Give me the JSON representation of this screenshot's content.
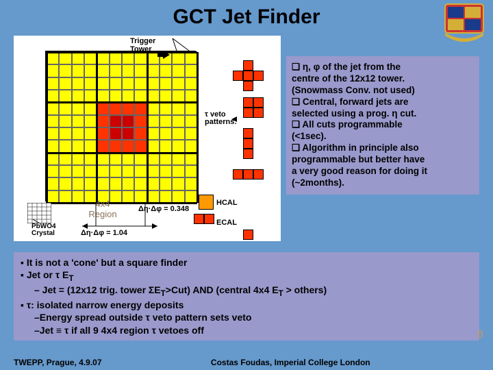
{
  "title": "GCT Jet Finder",
  "right_bullets": {
    "b1": "❑ η, φ of the jet from the",
    "b2": "centre of the 12x12 tower.",
    "b3": "(Snowmass Conv. not used)",
    "b4": "❑ Central, forward jets are",
    "b5": " selected using a prog. η cut.",
    "b6": "❑ All cuts programmable",
    "b7": "(<1sec).",
    "b8": "❑ Algorithm in principle also",
    "b9": "programmable but better have",
    "b10": "a very good reason for doing it",
    "b11": "(~2months)."
  },
  "lower": {
    "l1": "▪ It is not a 'cone' but a square finder",
    "l2": "▪ Jet or τ  E",
    "l2sub": "T",
    "l3": "– Jet = (12x12 trig. tower ΣE",
    "l3b": ">Cut) AND (central 4x4 E",
    "l3c": " > others)",
    "l4": "▪ τ: isolated narrow energy deposits",
    "l5": "–Energy spread outside τ veto pattern sets veto",
    "l6": "–Jet ≡ τ if all 9 4x4 region τ vetoes off"
  },
  "diagram": {
    "trigger_label_l1": "Trigger",
    "trigger_label_l2": "Tower",
    "veto_label_l1": "τ veto",
    "veto_label_l2": "patterns:",
    "region_l1": "4x4",
    "region_l2": "Region",
    "dpf": "Δη·Δφ = 0.348",
    "dndp": "Δη·Δφ = 1.04",
    "pbwo4_l1": "PbWO4",
    "pbwo4_l2": "Crystal",
    "hcal": "HCAL",
    "ecal": "ECAL"
  },
  "footer": {
    "left": "TWEPP, Prague, 4.9.07",
    "center": "Costas Foudas, Imperial College London"
  },
  "page_number": "8",
  "grid_colors": {
    "yellow": "#ffff00",
    "red": "#ff3300",
    "border": "#000000",
    "bg": "#ffffff"
  }
}
